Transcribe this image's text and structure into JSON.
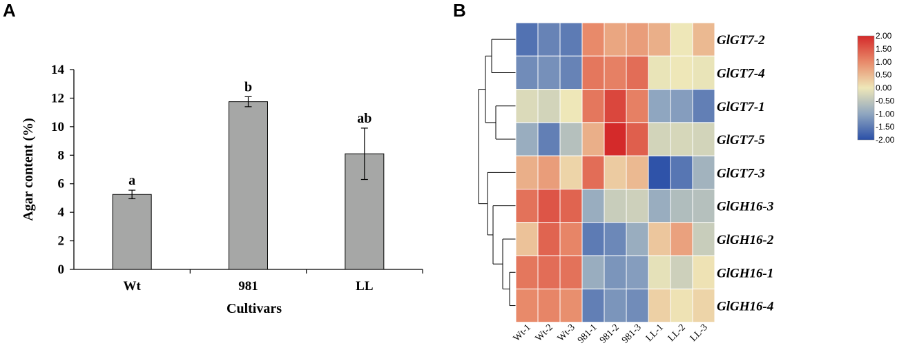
{
  "panels": {
    "a_letter": "A",
    "b_letter": "B"
  },
  "chart_data": [
    {
      "type": "bar",
      "title": "",
      "xlabel": "Cultivars",
      "ylabel": "Agar content (%)",
      "ylim": [
        0,
        14
      ],
      "yticks": [
        "0",
        "2",
        "4",
        "6",
        "8",
        "10",
        "12",
        "14"
      ],
      "categories": [
        "Wt",
        "981",
        "LL"
      ],
      "values": [
        5.25,
        11.75,
        8.1
      ],
      "errors": [
        0.3,
        0.35,
        1.8
      ],
      "significance": [
        "a",
        "b",
        "ab"
      ],
      "bar_color": "#a6a7a6",
      "grid": false
    },
    {
      "type": "heatmap",
      "row_labels": [
        "GlGT7-2",
        "GlGT7-4",
        "GlGT7-1",
        "GlGT7-5",
        "GlGT7-3",
        "GlGH16-3",
        "GlGH16-2",
        "GlGH16-1",
        "GlGH16-4"
      ],
      "col_labels": [
        "Wt-1",
        "Wt-2",
        "Wt-3",
        "981-1",
        "981-2",
        "981-3",
        "LL-1",
        "LL-2",
        "LL-3"
      ],
      "values": [
        [
          -1.6,
          -1.4,
          -1.5,
          1.0,
          0.7,
          0.8,
          0.6,
          0.0,
          0.5
        ],
        [
          -1.3,
          -1.25,
          -1.4,
          1.2,
          1.1,
          1.3,
          -0.05,
          0.0,
          -0.05
        ],
        [
          -0.2,
          -0.3,
          0.0,
          1.2,
          1.7,
          1.1,
          -1.0,
          -1.1,
          -1.45
        ],
        [
          -0.9,
          -1.45,
          -0.6,
          0.6,
          2.0,
          1.45,
          -0.3,
          -0.25,
          -0.3
        ],
        [
          0.6,
          0.8,
          0.2,
          1.3,
          0.3,
          0.5,
          -1.95,
          -1.55,
          -0.8
        ],
        [
          1.25,
          1.55,
          1.4,
          -0.9,
          -0.4,
          -0.35,
          -0.9,
          -0.65,
          -0.6
        ],
        [
          0.4,
          1.4,
          1.05,
          -1.5,
          -1.35,
          -0.9,
          0.35,
          0.75,
          -0.4
        ],
        [
          1.2,
          1.3,
          1.25,
          -0.9,
          -1.2,
          -1.1,
          -0.1,
          -0.35,
          0.05
        ],
        [
          1.0,
          1.05,
          0.95,
          -1.45,
          -1.2,
          -1.3,
          0.25,
          0.05,
          0.2
        ]
      ],
      "dendrogram_leaf_order": [
        "GlGT7-2",
        "GlGT7-4",
        "GlGT7-1",
        "GlGT7-5",
        "GlGT7-3",
        "GlGH16-3",
        "GlGH16-2",
        "GlGH16-1",
        "GlGH16-4"
      ],
      "colorbar": {
        "range": [
          -2.0,
          2.0
        ],
        "ticks": [
          "2.00",
          "1.50",
          "1.00",
          "0.50",
          "0.00",
          "-0.50",
          "-1.00",
          "-1.50",
          "-2.00"
        ],
        "colors": {
          "low": "#2a4fa8",
          "lowmid": "#8fa6c0",
          "mid": "#eee7b8",
          "highmid": "#e88a6a",
          "high": "#d42a2a"
        }
      }
    }
  ]
}
